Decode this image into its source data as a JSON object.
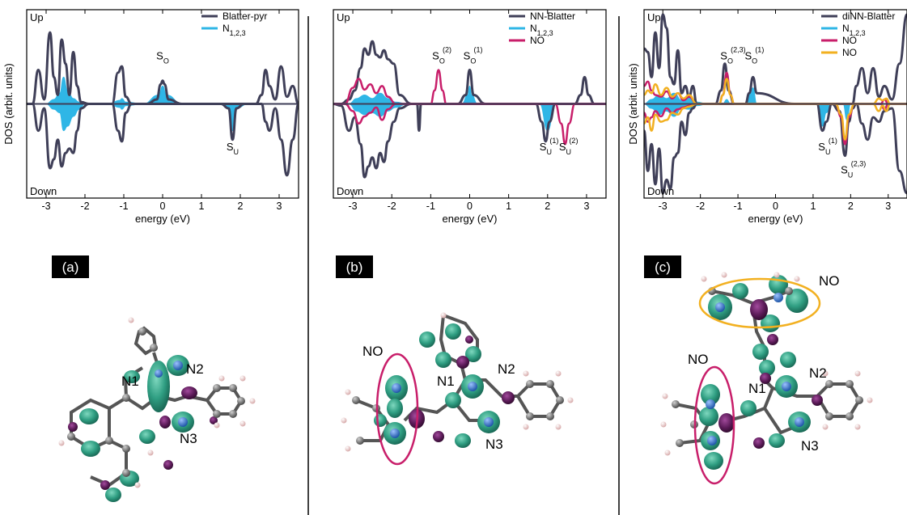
{
  "colors": {
    "dark": "#3f3f58",
    "cyan": "#2fb6e6",
    "magenta": "#c81e6a",
    "orange": "#f2b020",
    "lobe_green": "#2f9e82",
    "lobe_purple": "#5a1a57",
    "atom_gray": "#6a6a6a",
    "atom_blue": "#3d78c9",
    "atom_h": "#e8c6c6"
  },
  "panels": [
    {
      "label": "(a)",
      "up_label": "Up",
      "down_label": "Down",
      "mol_labels": [
        "N1",
        "N2",
        "N3"
      ]
    },
    {
      "label": "(b)",
      "up_label": "Up",
      "down_label": "Down",
      "mol_labels": [
        "NO",
        "N1",
        "N2",
        "N3"
      ]
    },
    {
      "label": "(c)",
      "up_label": "Up",
      "down_label": "Down",
      "mol_labels": [
        "NO",
        "NO",
        "N1",
        "N2",
        "N3"
      ]
    }
  ],
  "chart_data": [
    {
      "type": "line",
      "xlabel": "energy (eV)",
      "ylabel": "DOS (arbit. units)",
      "xlim": [
        -3.5,
        3.5
      ],
      "ylim": [
        -1,
        1
      ],
      "xticks": [
        -3,
        -2,
        -1,
        0,
        1,
        2,
        3
      ],
      "yticks": [],
      "grid": false,
      "legend_position": "top-right",
      "series": [
        {
          "name": "Blatter-pyr",
          "color": "#3f3f58",
          "kind": "line",
          "x": [
            -3.5,
            -3.35,
            -3.2,
            -3.05,
            -2.9,
            -2.8,
            -2.7,
            -2.6,
            -2.5,
            -2.4,
            -2.3,
            -2.2,
            -2.1,
            -1.9,
            -1.6,
            -1.3,
            -1.15,
            -1.05,
            -0.95,
            -0.8,
            -0.4,
            -0.15,
            -0.05,
            0,
            0.05,
            0.15,
            0.5,
            1.0,
            1.5,
            1.7,
            1.8,
            1.9,
            2.1,
            2.4,
            2.55,
            2.65,
            2.75,
            2.9,
            3.05,
            3.2,
            3.35,
            3.5
          ],
          "up": [
            0,
            0,
            0.38,
            0.05,
            0.8,
            0.3,
            0.1,
            0.72,
            0.45,
            0.1,
            0.58,
            0.2,
            0.02,
            0,
            0,
            0,
            0.35,
            0.42,
            0.08,
            0,
            0,
            0.05,
            0.22,
            0.26,
            0.22,
            0.05,
            0,
            0,
            0,
            0,
            0,
            0,
            0,
            0,
            0.1,
            0.38,
            0.2,
            0.05,
            0.42,
            0.08,
            0.2,
            0
          ],
          "down": [
            0,
            0,
            -0.3,
            -0.05,
            -0.72,
            -0.62,
            -0.4,
            -0.7,
            -0.55,
            -0.5,
            -0.55,
            -0.3,
            -0.05,
            0,
            0,
            0,
            -0.3,
            -0.42,
            -0.1,
            0,
            0,
            0,
            0,
            0,
            0,
            0,
            0,
            0,
            0,
            -0.05,
            -0.4,
            -0.05,
            0,
            0,
            0,
            -0.2,
            -0.3,
            -0.05,
            -0.4,
            -0.8,
            -0.4,
            0
          ]
        },
        {
          "name": "N1,2,3",
          "color": "#2fb6e6",
          "kind": "fill",
          "x": [
            -3.5,
            -3.0,
            -2.8,
            -2.65,
            -2.55,
            -2.45,
            -2.3,
            -2.15,
            -2.0,
            -1.4,
            -1.1,
            -1.05,
            -0.95,
            -0.5,
            -0.1,
            0,
            0.1,
            0.5,
            1.5,
            1.7,
            1.8,
            1.9,
            2.2,
            3.5
          ],
          "up": [
            0,
            0,
            0.05,
            0.12,
            0.3,
            0.15,
            0.06,
            0.02,
            0,
            0,
            0.04,
            0.06,
            0.02,
            0,
            0.1,
            0.2,
            0.1,
            0,
            0,
            0,
            0,
            0,
            0,
            0
          ],
          "down": [
            0,
            0,
            -0.06,
            -0.1,
            -0.3,
            -0.25,
            -0.14,
            -0.06,
            0,
            0,
            -0.04,
            -0.06,
            -0.02,
            0,
            0,
            0,
            0,
            0,
            0,
            -0.05,
            -0.3,
            -0.05,
            0,
            0
          ]
        }
      ],
      "annotations": [
        {
          "text": "S",
          "sub": "O",
          "sup": "",
          "x": 0.0,
          "y": 0.5
        },
        {
          "text": "S",
          "sub": "U",
          "sup": "",
          "x": 1.8,
          "y": -0.52
        }
      ]
    },
    {
      "type": "line",
      "xlabel": "energy (eV)",
      "ylabel": "",
      "xlim": [
        -3.5,
        3.5
      ],
      "ylim": [
        -1,
        1
      ],
      "xticks": [
        -3,
        -2,
        -1,
        0,
        1,
        2,
        3
      ],
      "yticks": [],
      "grid": false,
      "legend_position": "top-right",
      "series": [
        {
          "name": "NN-Blatter",
          "color": "#3f3f58",
          "kind": "line",
          "x": [
            -3.5,
            -3.3,
            -3.1,
            -2.95,
            -2.8,
            -2.7,
            -2.6,
            -2.5,
            -2.4,
            -2.3,
            -2.2,
            -2.1,
            -1.95,
            -1.8,
            -1.5,
            -1.35,
            -1.3,
            -1.25,
            -1.1,
            -0.9,
            -0.8,
            -0.7,
            -0.3,
            -0.1,
            0,
            0.1,
            0.4,
            1.7,
            1.85,
            1.95,
            2.05,
            2.2,
            2.35,
            2.45,
            2.55,
            2.7,
            2.85,
            2.95,
            3.05,
            3.2,
            3.5
          ],
          "up": [
            0,
            0,
            0.05,
            0.15,
            0.4,
            0.62,
            0.55,
            0.7,
            0.55,
            0.52,
            0.6,
            0.5,
            0.45,
            0.1,
            0,
            0,
            0,
            0,
            0,
            0,
            0,
            0,
            0,
            0.1,
            0.38,
            0.1,
            0,
            0,
            0,
            0,
            0,
            0,
            0,
            0,
            0,
            0,
            0.1,
            0.3,
            0.1,
            0,
            0
          ],
          "down": [
            0,
            -0.02,
            -0.3,
            -0.15,
            -0.45,
            -0.82,
            -0.7,
            -0.6,
            -0.72,
            -0.55,
            -0.65,
            -0.42,
            -0.2,
            -0.05,
            0,
            0,
            -0.3,
            0,
            0,
            0,
            0,
            0,
            0,
            0,
            0,
            0,
            0,
            0,
            -0.2,
            -0.42,
            -0.2,
            0,
            0,
            0,
            0,
            0,
            0,
            0,
            0,
            0,
            0
          ]
        },
        {
          "name": "N1,2,3",
          "color": "#2fb6e6",
          "kind": "fill",
          "x": [
            -3.5,
            -3.1,
            -2.9,
            -2.7,
            -2.5,
            -2.3,
            -2.1,
            -1.9,
            -1.6,
            -0.2,
            -0.05,
            0,
            0.05,
            0.2,
            1.8,
            2.0,
            2.2,
            3.5
          ],
          "up": [
            0,
            0,
            0.06,
            0.1,
            0.06,
            0.12,
            0.06,
            0.02,
            0,
            0,
            0.1,
            0.2,
            0.1,
            0,
            0,
            0,
            0,
            0
          ],
          "down": [
            0,
            0,
            -0.08,
            -0.12,
            -0.1,
            -0.14,
            -0.08,
            -0.04,
            0,
            0,
            0,
            0,
            0,
            0,
            0,
            -0.3,
            0,
            0
          ]
        },
        {
          "name": "NO",
          "color": "#c81e6a",
          "kind": "line",
          "x": [
            -3.5,
            -3.2,
            -3.0,
            -2.85,
            -2.7,
            -2.55,
            -2.4,
            -2.25,
            -2.1,
            -1.9,
            -1.5,
            -1.0,
            -0.9,
            -0.8,
            -0.7,
            -0.6,
            0.5,
            2.2,
            2.35,
            2.45,
            2.55,
            2.7,
            3.5
          ],
          "up": [
            0,
            0,
            0.18,
            0.28,
            0.16,
            0.22,
            0.12,
            0.2,
            0.08,
            0,
            0,
            0,
            0.15,
            0.38,
            0.15,
            0,
            0,
            0,
            0,
            0,
            0,
            0,
            0
          ],
          "down": [
            0,
            0,
            -0.08,
            -0.22,
            -0.14,
            -0.1,
            -0.04,
            -0.18,
            -0.06,
            0,
            0,
            0,
            0,
            0,
            0,
            0,
            0,
            0,
            -0.22,
            -0.45,
            -0.22,
            0,
            0
          ]
        }
      ],
      "annotations": [
        {
          "text": "S",
          "sub": "O",
          "sup": "(2)",
          "x": -0.8,
          "y": 0.5
        },
        {
          "text": "S",
          "sub": "O",
          "sup": "(1)",
          "x": 0.0,
          "y": 0.5
        },
        {
          "text": "S",
          "sub": "U",
          "sup": "(1)",
          "x": 1.95,
          "y": -0.52
        },
        {
          "text": "S",
          "sub": "U",
          "sup": "(2)",
          "x": 2.45,
          "y": -0.52
        }
      ]
    },
    {
      "type": "line",
      "xlabel": "energy (eV)",
      "ylabel": "DOS (arbit. units)",
      "xlim": [
        -3.5,
        3.5
      ],
      "ylim": [
        -1,
        1
      ],
      "xticks": [
        -3,
        -2,
        -1,
        0,
        1,
        2,
        3
      ],
      "yticks": [],
      "grid": false,
      "legend_position": "top-right",
      "series": [
        {
          "name": "diNN-Blatter",
          "color": "#3f3f58",
          "kind": "line",
          "x": [
            -3.5,
            -3.4,
            -3.3,
            -3.2,
            -3.1,
            -3.0,
            -2.9,
            -2.8,
            -2.7,
            -2.6,
            -2.5,
            -2.4,
            -2.3,
            -2.2,
            -2.1,
            -1.9,
            -1.6,
            -1.45,
            -1.35,
            -1.25,
            -1.1,
            -0.8,
            -0.7,
            -0.6,
            -0.5,
            0.5,
            1.1,
            1.25,
            1.35,
            1.5,
            1.7,
            1.85,
            1.95,
            2.05,
            2.15,
            2.3,
            2.45,
            2.6,
            2.75,
            2.9,
            3.1,
            3.3,
            3.5
          ],
          "up": [
            0.62,
            0.58,
            0.3,
            0.8,
            0.4,
            1.0,
            0.85,
            0.3,
            0.22,
            0.6,
            0.12,
            0.2,
            0.08,
            0.2,
            0,
            0,
            0,
            0.15,
            0.45,
            0.15,
            0,
            0,
            0.12,
            0.3,
            0.12,
            0,
            0,
            0,
            0,
            0,
            0,
            0,
            0,
            0,
            0.2,
            0.4,
            0.12,
            0.4,
            0.08,
            0.2,
            0.05,
            0.45,
            1.0
          ],
          "down": [
            -0.3,
            -0.75,
            -0.45,
            -0.9,
            -0.5,
            -1.0,
            -0.85,
            -0.95,
            -0.6,
            -0.55,
            -0.2,
            -0.35,
            -0.1,
            -0.05,
            0,
            0,
            0,
            0,
            0,
            0,
            0,
            0,
            0,
            0,
            0,
            0,
            0,
            -0.3,
            -0.2,
            0,
            -0.08,
            -0.58,
            -0.2,
            -0.05,
            0,
            -0.22,
            -0.4,
            -0.15,
            -0.2,
            -0.08,
            -0.05,
            -0.75,
            -1.0
          ]
        },
        {
          "name": "N1,2,3",
          "color": "#2fb6e6",
          "kind": "fill",
          "x": [
            -3.5,
            -3.3,
            -3.1,
            -2.9,
            -2.7,
            -2.5,
            -2.3,
            -2.1,
            -1.8,
            -1.4,
            -1.3,
            -1.2,
            -0.8,
            -0.7,
            -0.6,
            -0.5,
            1.1,
            1.25,
            1.35,
            1.5,
            1.8,
            1.9,
            2.0,
            2.2,
            3.5
          ],
          "up": [
            0,
            0.05,
            0.1,
            0.06,
            0.12,
            0.04,
            0.08,
            0.02,
            0,
            0,
            0.05,
            0,
            0,
            0.1,
            0.18,
            0,
            0,
            0,
            0,
            0,
            0,
            0,
            0,
            0,
            0
          ],
          "down": [
            0,
            -0.05,
            -0.12,
            -0.08,
            -0.14,
            -0.05,
            -0.06,
            -0.02,
            0,
            0,
            0,
            0,
            0,
            0,
            0,
            0,
            0,
            -0.25,
            -0.1,
            0,
            0,
            -0.18,
            0,
            0,
            0
          ]
        },
        {
          "name": "NO",
          "color": "#c81e6a",
          "kind": "line",
          "x": [
            -3.5,
            -3.4,
            -3.3,
            -3.2,
            -3.05,
            -2.9,
            -2.75,
            -2.6,
            -2.45,
            -2.3,
            -2.1,
            -1.8,
            -1.5,
            -1.4,
            -1.3,
            -1.2,
            -1.1,
            0,
            1.6,
            1.75,
            1.85,
            1.95,
            2.1,
            2.5,
            2.8,
            2.9,
            3.0,
            3.2,
            3.5
          ],
          "up": [
            0.2,
            0.25,
            0.15,
            0.1,
            0.08,
            0.14,
            0.06,
            0.12,
            0.04,
            0.08,
            0,
            0,
            0,
            0.1,
            0.35,
            0.1,
            0,
            0,
            0,
            0,
            0,
            0,
            0,
            0,
            0,
            0.05,
            0,
            0,
            0
          ],
          "down": [
            -0.1,
            -0.2,
            -0.15,
            -0.08,
            -0.14,
            -0.05,
            -0.1,
            -0.06,
            -0.04,
            -0.02,
            0,
            0,
            0,
            0,
            0,
            0,
            0,
            0,
            0,
            -0.15,
            -0.45,
            -0.15,
            0,
            0,
            0,
            -0.06,
            0,
            0,
            0
          ]
        },
        {
          "name": "NO",
          "color": "#f2b020",
          "kind": "line",
          "x": [
            -3.5,
            -3.4,
            -3.3,
            -3.2,
            -3.05,
            -2.9,
            -2.75,
            -2.6,
            -2.45,
            -2.3,
            -2.1,
            -1.8,
            -1.5,
            -1.4,
            -1.3,
            -1.2,
            -1.1,
            0,
            1.6,
            1.75,
            1.85,
            1.95,
            2.1,
            2.6,
            2.75,
            2.85,
            2.95,
            3.05,
            3.5
          ],
          "up": [
            0.1,
            0.15,
            0.12,
            0.22,
            0.1,
            0.18,
            0.08,
            0.12,
            0.06,
            0.1,
            0,
            0,
            0,
            0.1,
            0.28,
            0.1,
            0,
            0,
            0,
            0,
            0,
            0,
            0,
            0,
            0.06,
            0.04,
            0.06,
            0,
            0
          ],
          "down": [
            -0.22,
            -0.15,
            -0.3,
            -0.12,
            -0.2,
            -0.18,
            -0.1,
            -0.12,
            -0.05,
            -0.03,
            0,
            0,
            0,
            0,
            0,
            0,
            0,
            0,
            0,
            -0.12,
            -0.4,
            -0.12,
            0,
            0,
            -0.08,
            -0.02,
            -0.08,
            0,
            0
          ]
        }
      ],
      "annotations": [
        {
          "text": "S",
          "sub": "O",
          "sup": "(2,3)",
          "x": -1.3,
          "y": 0.5
        },
        {
          "text": "S",
          "sub": "O",
          "sup": "(1)",
          "x": -0.65,
          "y": 0.5
        },
        {
          "text": "S",
          "sub": "U",
          "sup": "(1)",
          "x": 1.3,
          "y": -0.52
        },
        {
          "text": "S",
          "sub": "U",
          "sup": "(2,3)",
          "x": 1.9,
          "y": -0.78
        }
      ]
    }
  ]
}
